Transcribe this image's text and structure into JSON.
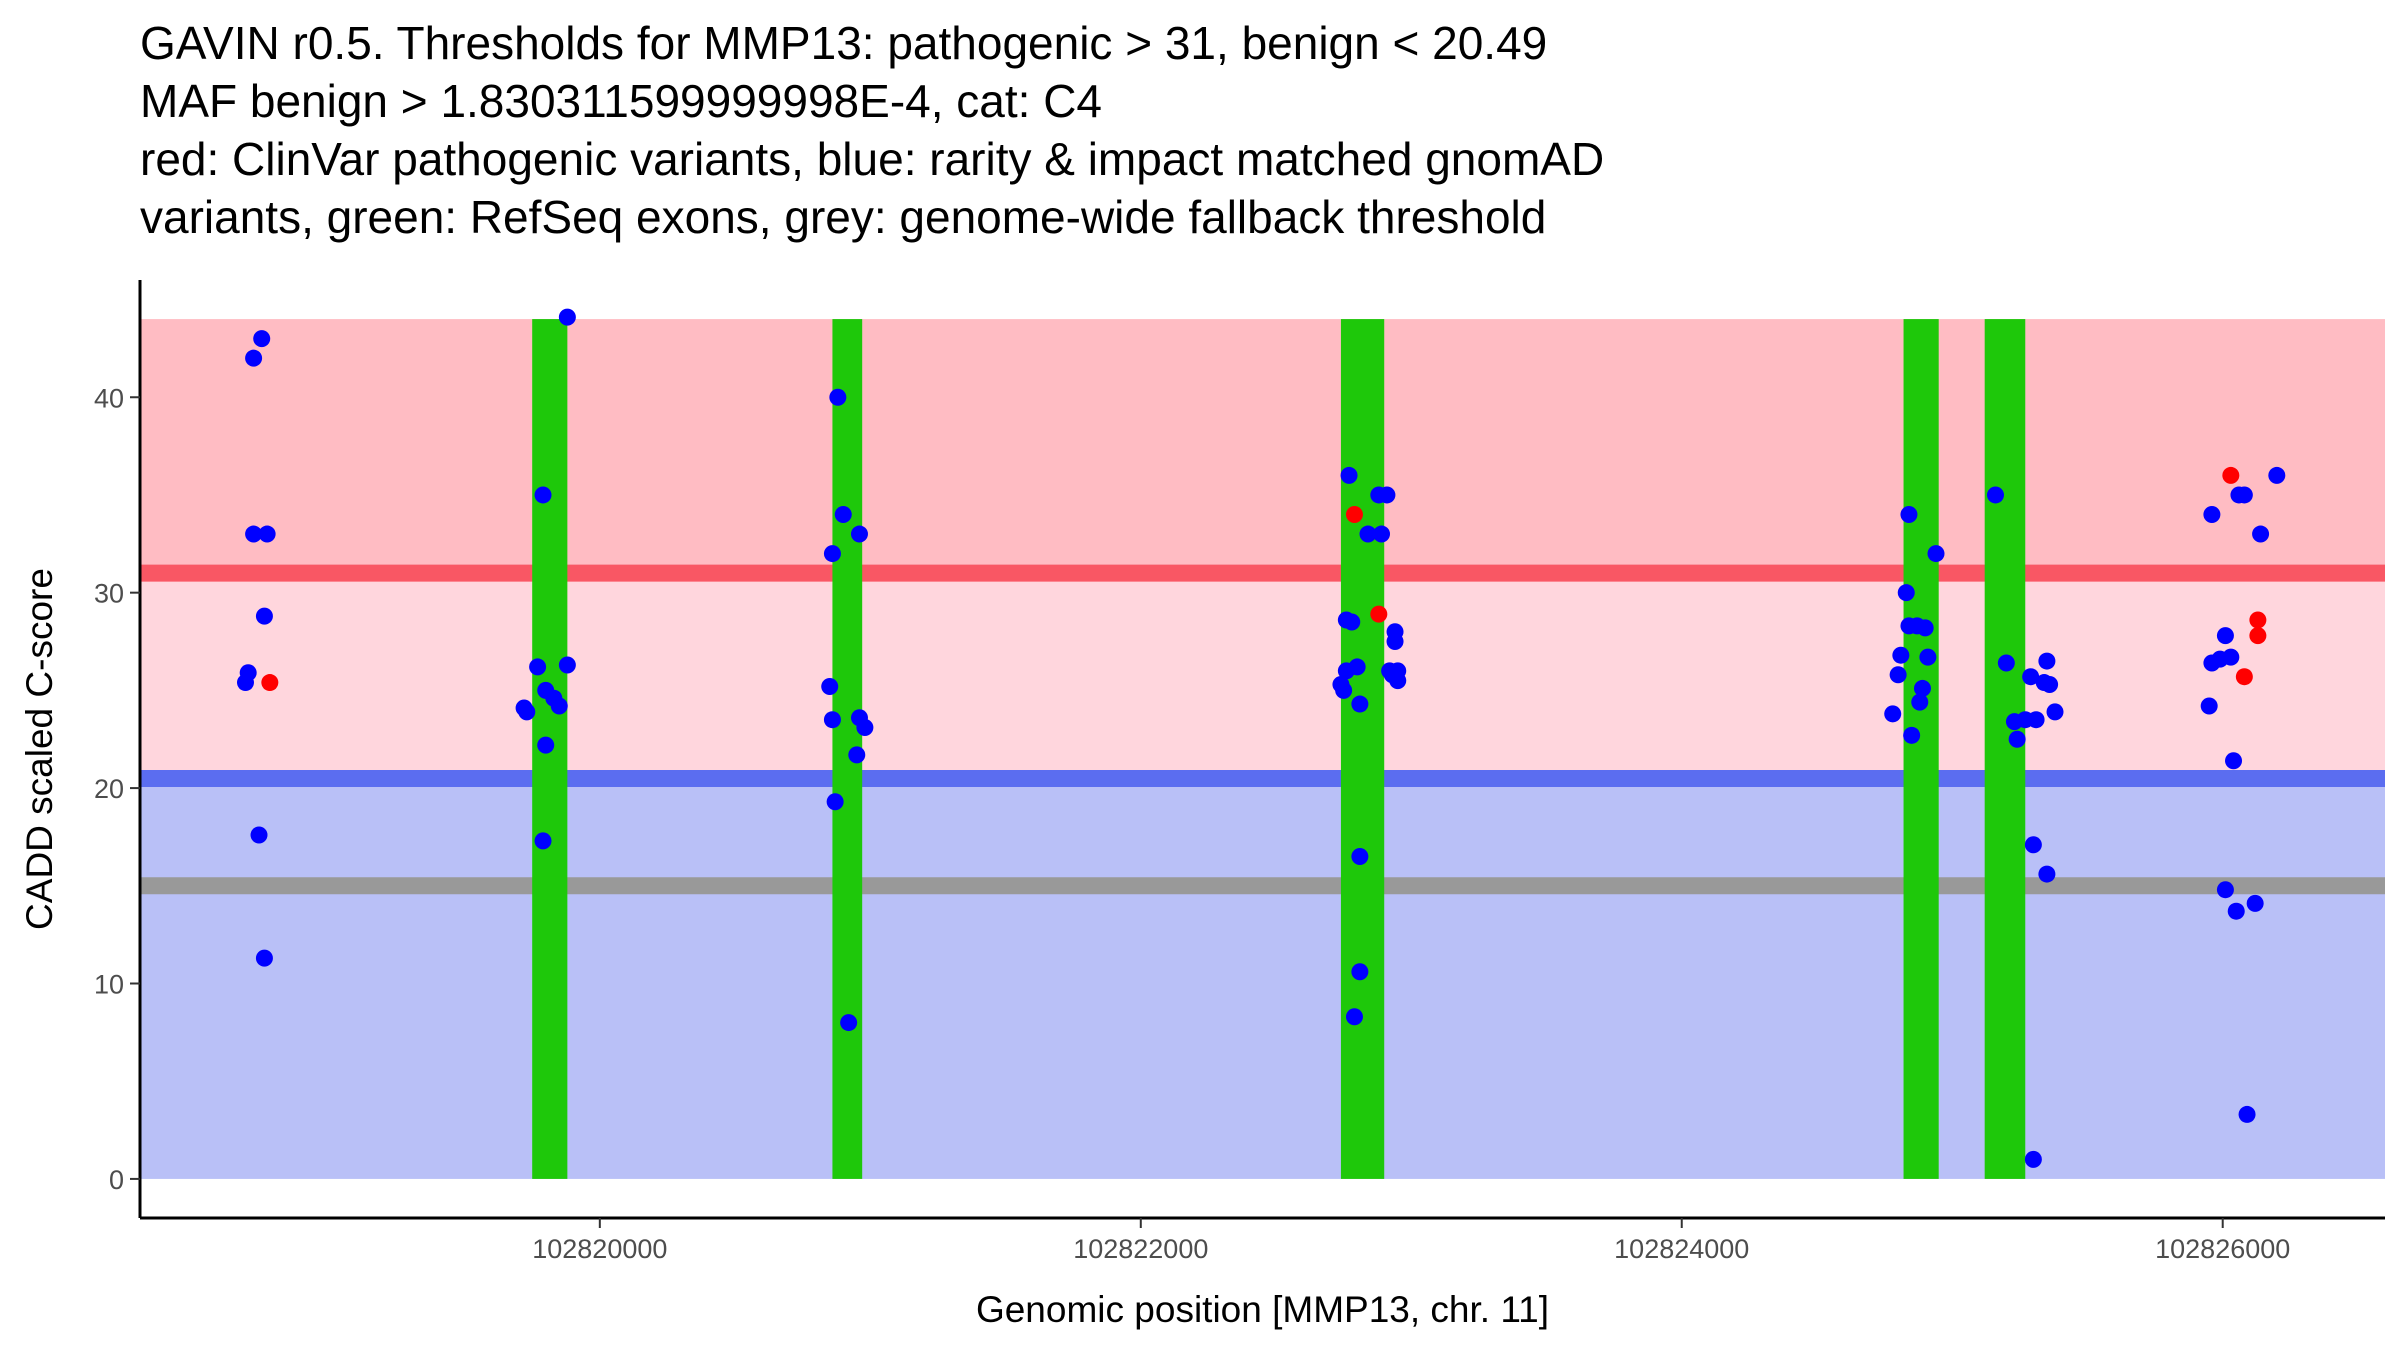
{
  "chart_data": {
    "type": "scatter",
    "title_lines": [
      "GAVIN r0.5. Thresholds for MMP13: pathogenic > 31, benign < 20.49",
      "MAF benign > 1.830311599999998E-4, cat: C4",
      "red: ClinVar pathogenic variants, blue: rarity & impact matched gnomAD",
      "variants, green: RefSeq exons, grey: genome-wide fallback threshold"
    ],
    "xlabel": "Genomic position [MMP13, chr. 11]",
    "ylabel": "CADD scaled C-score",
    "xlim": [
      102818300,
      102826600
    ],
    "ylim": [
      -2,
      46
    ],
    "x_ticks": [
      102820000,
      102822000,
      102824000,
      102826000
    ],
    "x_tick_labels": [
      "102820000",
      "102822000",
      "102824000",
      "102826000"
    ],
    "y_ticks": [
      0,
      10,
      20,
      30,
      40
    ],
    "y_tick_labels": [
      "0",
      "10",
      "20",
      "30",
      "40"
    ],
    "colors": {
      "pathogenic_region": "#ffbcc3",
      "intermediate_region": "#ffd6dd",
      "benign_region": "#b9c0f7",
      "pathogenic_line": "#f95764",
      "benign_line": "#5b6df0",
      "fallback_line": "#999999",
      "exon": "#1ec80a",
      "clinvar_point": "#ff0000",
      "gnomad_point": "#0000ff"
    },
    "regions": [
      {
        "name": "pathogenic",
        "y0": 31,
        "y1": 44
      },
      {
        "name": "intermediate",
        "y0": 20.49,
        "y1": 31
      },
      {
        "name": "benign",
        "y0": 0,
        "y1": 20.49
      }
    ],
    "thresholds": {
      "pathogenic": 31,
      "benign": 20.49,
      "fallback": 15
    },
    "x_start": 102818300,
    "exons": [
      {
        "start": 102819750,
        "end": 102819880
      },
      {
        "start": 102820860,
        "end": 102820970
      },
      {
        "start": 102822740,
        "end": 102822900
      },
      {
        "start": 102824820,
        "end": 102824950
      },
      {
        "start": 102825120,
        "end": 102825270
      }
    ],
    "exon_top": 44,
    "series": [
      {
        "name": "ClinVar pathogenic",
        "points": [
          [
            102818780,
            25.4
          ],
          [
            102822790,
            34.0
          ],
          [
            102822880,
            28.9
          ],
          [
            102826030,
            36.0
          ],
          [
            102826080,
            25.7
          ],
          [
            102826130,
            28.6
          ],
          [
            102826130,
            27.8
          ]
        ]
      },
      {
        "name": "gnomAD matched",
        "points": [
          [
            102818690,
            25.4
          ],
          [
            102818700,
            25.9
          ],
          [
            102818720,
            42.0
          ],
          [
            102818720,
            33.0
          ],
          [
            102818740,
            17.6
          ],
          [
            102818750,
            43.0
          ],
          [
            102818760,
            11.3
          ],
          [
            102818760,
            28.8
          ],
          [
            102818770,
            33.0
          ],
          [
            102819720,
            24.1
          ],
          [
            102819730,
            23.9
          ],
          [
            102819770,
            26.2
          ],
          [
            102819790,
            35.0
          ],
          [
            102819790,
            17.3
          ],
          [
            102819800,
            22.2
          ],
          [
            102819800,
            25.0
          ],
          [
            102819830,
            24.6
          ],
          [
            102819850,
            24.2
          ],
          [
            102819880,
            26.3
          ],
          [
            102819880,
            44.1
          ],
          [
            102820850,
            25.2
          ],
          [
            102820860,
            23.5
          ],
          [
            102820860,
            32.0
          ],
          [
            102820870,
            19.3
          ],
          [
            102820880,
            40.0
          ],
          [
            102820900,
            34.0
          ],
          [
            102820920,
            8.0
          ],
          [
            102820950,
            21.7
          ],
          [
            102820960,
            33.0
          ],
          [
            102820960,
            23.6
          ],
          [
            102820980,
            23.1
          ],
          [
            102822740,
            25.3
          ],
          [
            102822750,
            25.0
          ],
          [
            102822760,
            28.6
          ],
          [
            102822760,
            26.0
          ],
          [
            102822770,
            36.0
          ],
          [
            102822780,
            28.5
          ],
          [
            102822790,
            8.3
          ],
          [
            102822800,
            26.2
          ],
          [
            102822810,
            10.6
          ],
          [
            102822810,
            16.5
          ],
          [
            102822810,
            24.3
          ],
          [
            102822840,
            33.0
          ],
          [
            102822880,
            35.0
          ],
          [
            102822890,
            33.0
          ],
          [
            102822910,
            35.0
          ],
          [
            102822920,
            26.0
          ],
          [
            102822930,
            25.8
          ],
          [
            102822940,
            27.5
          ],
          [
            102822940,
            28.0
          ],
          [
            102822950,
            26.0
          ],
          [
            102822950,
            25.5
          ],
          [
            102824780,
            23.8
          ],
          [
            102824800,
            25.8
          ],
          [
            102824810,
            26.8
          ],
          [
            102824830,
            30.0
          ],
          [
            102824840,
            34.0
          ],
          [
            102824840,
            28.3
          ],
          [
            102824850,
            22.7
          ],
          [
            102824870,
            28.3
          ],
          [
            102824880,
            24.4
          ],
          [
            102824890,
            25.1
          ],
          [
            102824900,
            28.2
          ],
          [
            102824910,
            26.7
          ],
          [
            102824940,
            32.0
          ],
          [
            102825160,
            35.0
          ],
          [
            102825200,
            26.4
          ],
          [
            102825230,
            23.4
          ],
          [
            102825240,
            22.5
          ],
          [
            102825270,
            23.5
          ],
          [
            102825290,
            25.7
          ],
          [
            102825300,
            17.1
          ],
          [
            102825300,
            1.0
          ],
          [
            102825310,
            23.5
          ],
          [
            102825340,
            25.4
          ],
          [
            102825350,
            15.6
          ],
          [
            102825350,
            26.5
          ],
          [
            102825360,
            25.3
          ],
          [
            102825380,
            23.9
          ],
          [
            102825950,
            24.2
          ],
          [
            102825960,
            26.4
          ],
          [
            102825960,
            34.0
          ],
          [
            102825990,
            26.6
          ],
          [
            102826010,
            14.8
          ],
          [
            102826010,
            27.8
          ],
          [
            102826030,
            26.7
          ],
          [
            102826040,
            21.4
          ],
          [
            102826050,
            13.7
          ],
          [
            102826060,
            35.0
          ],
          [
            102826080,
            35.0
          ],
          [
            102826090,
            3.3
          ],
          [
            102826120,
            14.1
          ],
          [
            102826140,
            33.0
          ],
          [
            102826200,
            36.0
          ]
        ]
      }
    ]
  }
}
